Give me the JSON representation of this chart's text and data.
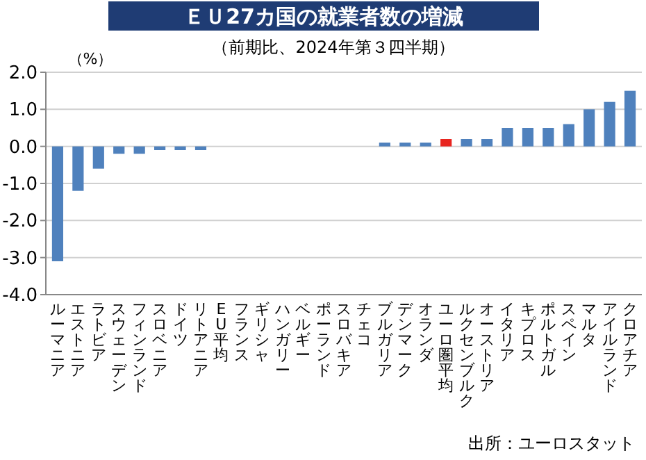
{
  "chart_data": {
    "type": "bar",
    "title": "ＥＵ27カ国の就業者数の増減",
    "subtitle": "（前期比、2024年第３四半期）",
    "ylabel": "（%）",
    "annotations": [
      "出所：ユーロスタット"
    ],
    "categories": [
      "ルーマニア",
      "エストニア",
      "ラトビア",
      "スウェーデン",
      "フィンランド",
      "スロベニア",
      "ドイツ",
      "リトアニア",
      "EU平均",
      "フランス",
      "ギリシャ",
      "ハンガリー",
      "ベルギー",
      "ポーランド",
      "スロバキア",
      "チェコ",
      "ブルガリア",
      "デンマーク",
      "オランダ",
      "ユーロ圏平均",
      "ルクセンブルク",
      "オーストリア",
      "イタリア",
      "キプロス",
      "ポルトガル",
      "スペイン",
      "マルタ",
      "アイルランド",
      "クロアチア"
    ],
    "values": [
      -3.1,
      -1.2,
      -0.6,
      -0.2,
      -0.2,
      -0.1,
      -0.1,
      -0.1,
      0,
      0,
      0,
      0,
      0,
      0,
      0,
      0,
      0.1,
      0.1,
      0.1,
      0.2,
      0.2,
      0.2,
      0.5,
      0.5,
      0.5,
      0.6,
      1.0,
      1.2,
      1.5
    ],
    "colors": [
      "#4f81bd",
      "#4f81bd",
      "#4f81bd",
      "#4f81bd",
      "#4f81bd",
      "#4f81bd",
      "#4f81bd",
      "#4f81bd",
      "#4f81bd",
      "#4f81bd",
      "#4f81bd",
      "#4f81bd",
      "#4f81bd",
      "#4f81bd",
      "#4f81bd",
      "#4f81bd",
      "#4f81bd",
      "#4f81bd",
      "#4f81bd",
      "#e8251f",
      "#4f81bd",
      "#4f81bd",
      "#4f81bd",
      "#4f81bd",
      "#4f81bd",
      "#4f81bd",
      "#4f81bd",
      "#4f81bd",
      "#4f81bd"
    ],
    "ylim": [
      -4,
      2
    ],
    "yticks": [
      {
        "value": 2,
        "label": "2.0"
      },
      {
        "value": 1,
        "label": "1.0"
      },
      {
        "value": 0,
        "label": "0.0"
      },
      {
        "value": -1,
        "label": "-1.0"
      },
      {
        "value": -2,
        "label": "-2.0"
      },
      {
        "value": -3,
        "label": "-3.0"
      },
      {
        "value": -4,
        "label": "-4.0"
      }
    ],
    "grid": "y"
  }
}
